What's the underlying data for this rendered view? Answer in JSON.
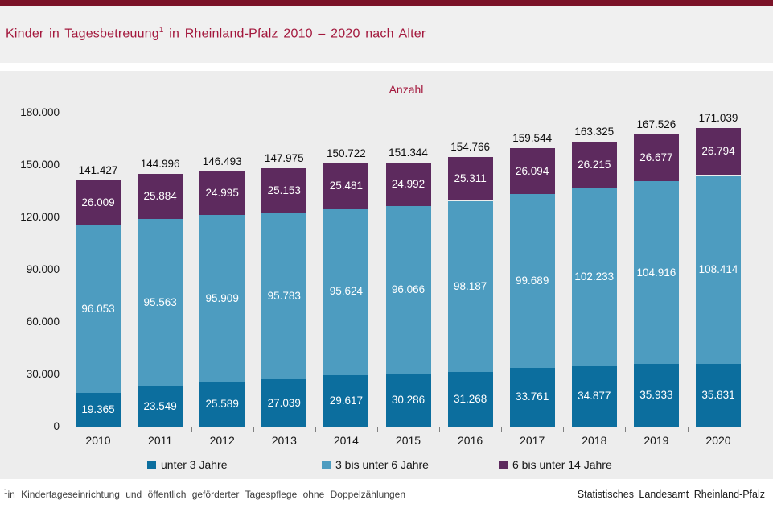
{
  "header": {
    "title_main": "Kinder in Tagesbetreuung",
    "title_sup": "1",
    "title_rest": " in Rheinland-Pfalz 2010 – 2020 nach Alter"
  },
  "chart_data": {
    "type": "bar",
    "stacked": true,
    "title": "Kinder in Tagesbetreuung in Rheinland-Pfalz 2010 – 2020 nach Alter",
    "ylabel": "Anzahl",
    "xlabel": "",
    "categories": [
      "2010",
      "2011",
      "2012",
      "2013",
      "2014",
      "2015",
      "2016",
      "2017",
      "2018",
      "2019",
      "2020"
    ],
    "series": [
      {
        "name": "unter 3 Jahre",
        "color": "#0c6e9e",
        "values": [
          19365,
          23549,
          25589,
          27039,
          29617,
          30286,
          31268,
          33761,
          34877,
          35933,
          35831
        ]
      },
      {
        "name": "3 bis unter 6 Jahre",
        "color": "#4d9cc0",
        "values": [
          96053,
          95563,
          95909,
          95783,
          95624,
          96066,
          98187,
          99689,
          102233,
          104916,
          108414
        ]
      },
      {
        "name": "6 bis unter 14 Jahre",
        "color": "#5d2a5e",
        "values": [
          26009,
          25884,
          24995,
          25153,
          25481,
          24992,
          25311,
          26094,
          26215,
          26677,
          26794
        ]
      }
    ],
    "totals": [
      141427,
      144996,
      146493,
      147975,
      150722,
      151344,
      154766,
      159544,
      163325,
      167526,
      171039
    ],
    "ylim": [
      0,
      180000
    ],
    "ytick_step": 30000,
    "grid": false,
    "legend_position": "bottom",
    "number_format": "de-thousands-dot"
  },
  "footer": {
    "footnote_sup": "1",
    "footnote_text": "in Kindertageseinrichtung und öffentlich geförderter Tagespflege ohne Doppelzählungen",
    "source": "Statistisches Landesamt Rheinland-Pfalz"
  },
  "colors": {
    "topbar": "#7b1228",
    "accent_red": "#a3173c",
    "chart_background": "#ededed",
    "axis": "#7f7f7f",
    "bar_under3": "#0c6e9e",
    "bar_3to6": "#4d9cc0",
    "bar_6to14": "#5d2a5e"
  }
}
